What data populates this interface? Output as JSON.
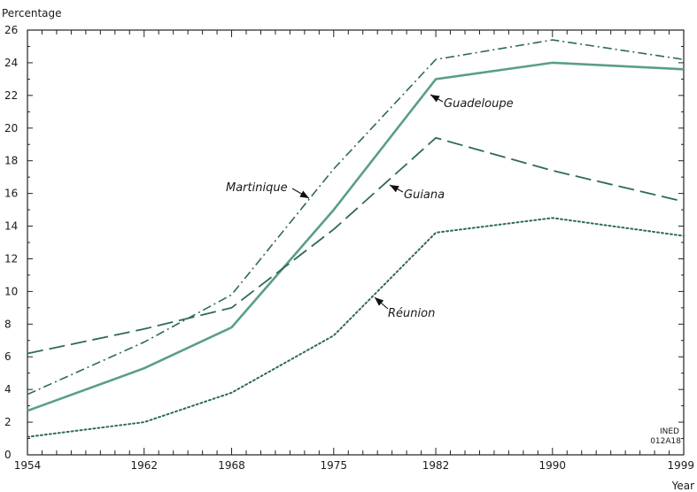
{
  "chart_data": {
    "type": "line",
    "title": "",
    "ylabel": "Percentage",
    "xlabel": "Year",
    "xlim": [
      1954,
      1999
    ],
    "ylim": [
      0,
      26
    ],
    "x": [
      1954,
      1962,
      1968,
      1975,
      1982,
      1990,
      1999
    ],
    "x_ticks": [
      "1954",
      "1962",
      "1968",
      "1975",
      "1982",
      "1990",
      "1999"
    ],
    "y_ticks": [
      "0",
      "2",
      "4",
      "6",
      "8",
      "10",
      "12",
      "14",
      "16",
      "18",
      "20",
      "22",
      "24",
      "26"
    ],
    "grid": false,
    "series": [
      {
        "name": "Martinique",
        "style": "dash-dot",
        "color": "#2e6b52",
        "values": [
          3.7,
          6.9,
          9.8,
          17.5,
          24.2,
          25.4,
          24.2
        ]
      },
      {
        "name": "Guadeloupe",
        "style": "solid",
        "color": "#5a9e88",
        "values": [
          2.7,
          5.3,
          7.8,
          15.0,
          23.0,
          24.0,
          23.6
        ]
      },
      {
        "name": "Guiana",
        "style": "dashed",
        "color": "#2e6b52",
        "values": [
          6.2,
          7.7,
          9.0,
          13.8,
          19.4,
          17.4,
          15.5
        ]
      },
      {
        "name": "Réunion",
        "style": "dotted",
        "color": "#2e6b52",
        "values": [
          1.1,
          2.0,
          3.8,
          7.3,
          13.6,
          14.5,
          13.4
        ]
      }
    ],
    "credit": [
      "INED",
      "012A18"
    ]
  }
}
